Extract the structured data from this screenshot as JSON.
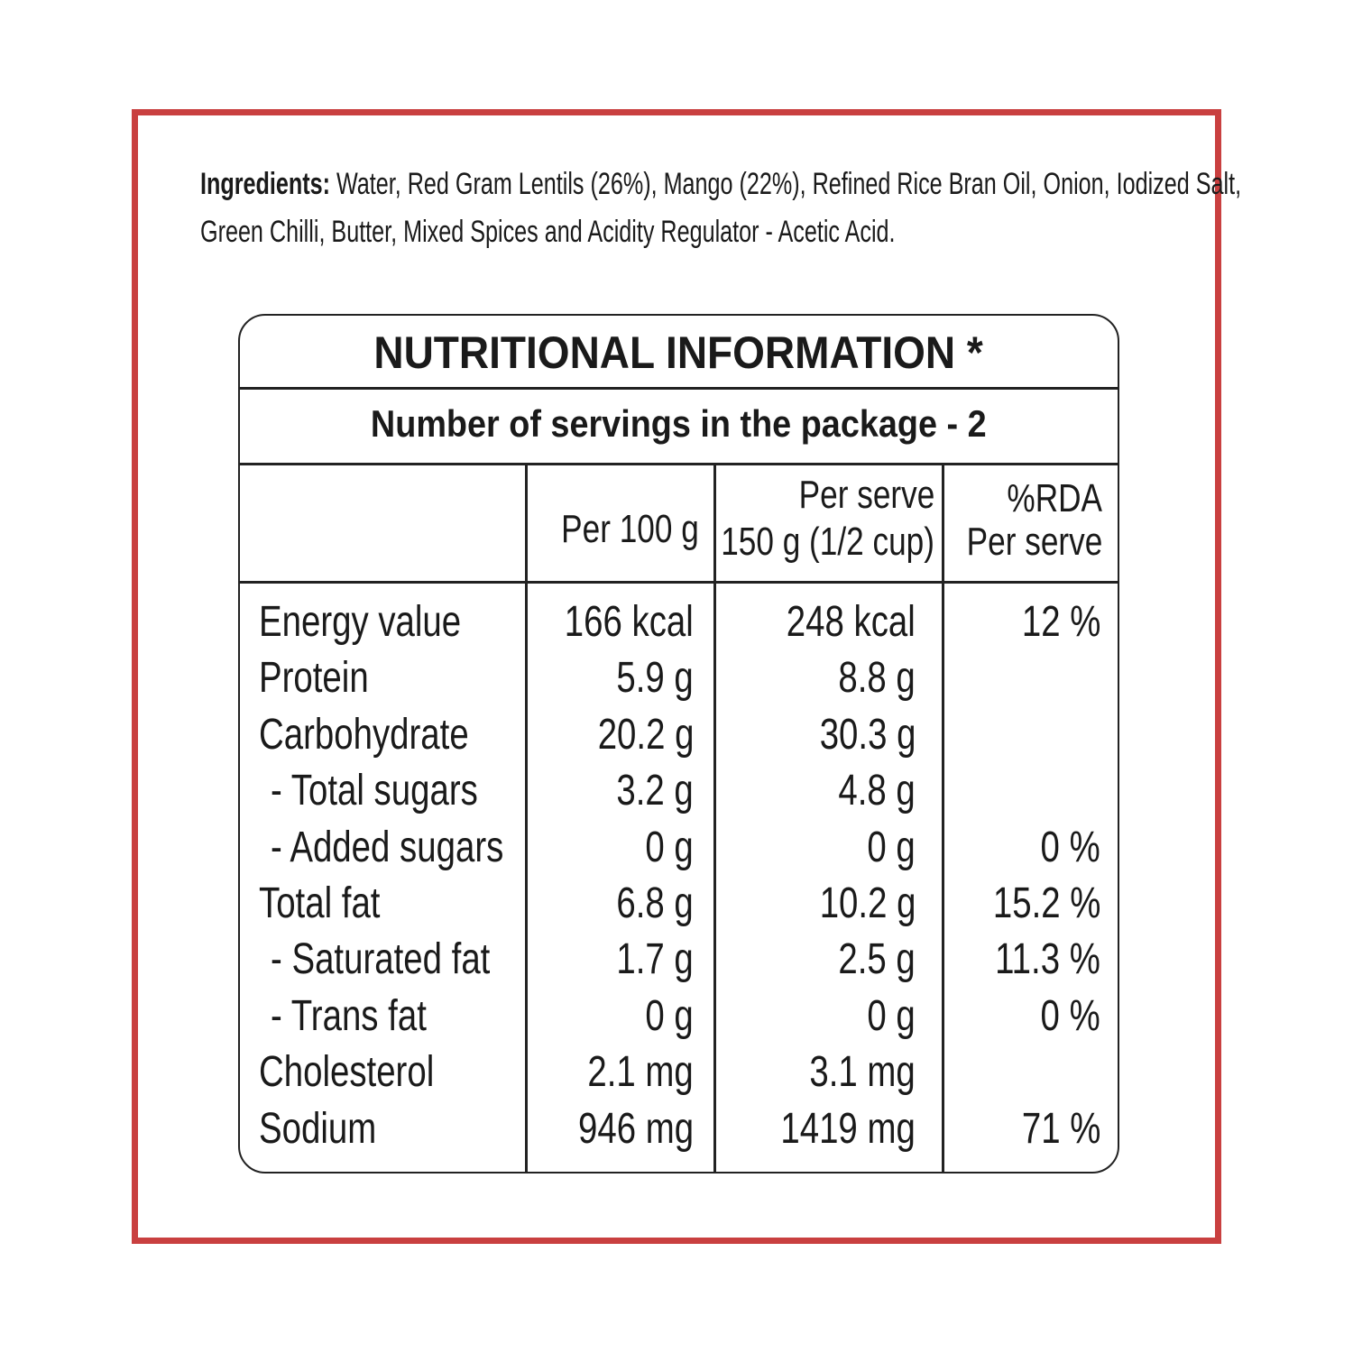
{
  "colors": {
    "border": "#c94040",
    "rule": "#222222"
  },
  "ingredients": {
    "label": "Ingredients:",
    "line1": " Water, Red Gram Lentils (26%), Mango (22%), Refined Rice Bran Oil, Onion, Iodized Salt,",
    "line2": "Green Chilli, Butter, Mixed Spices and Acidity Regulator - Acetic Acid."
  },
  "table": {
    "title": "NUTRITIONAL INFORMATION  *",
    "servings": "Number of servings in the package - 2",
    "headers": {
      "per100": "Per 100 g",
      "serve_l1": "Per serve",
      "serve_l2": "150 g (1/2 cup)",
      "rda_l1": "%RDA",
      "rda_l2": "Per serve"
    },
    "rows": [
      {
        "name": "Energy value",
        "per100": "166 kcal",
        "serve": "248 kcal",
        "rda": "12 %"
      },
      {
        "name": "Protein",
        "per100": "5.9 g",
        "serve": "8.8 g",
        "rda": ""
      },
      {
        "name": "Carbohydrate",
        "per100": "20.2 g",
        "serve": "30.3 g",
        "rda": ""
      },
      {
        "name": "- Total sugars",
        "per100": "3.2 g",
        "serve": "4.8 g",
        "rda": "",
        "sub": true
      },
      {
        "name": "- Added sugars",
        "per100": "0 g",
        "serve": "0 g",
        "rda": "0 %",
        "sub": true
      },
      {
        "name": "Total fat",
        "per100": "6.8 g",
        "serve": "10.2 g",
        "rda": "15.2 %"
      },
      {
        "name": "- Saturated fat",
        "per100": "1.7 g",
        "serve": "2.5 g",
        "rda": "11.3 %",
        "sub": true
      },
      {
        "name": "- Trans fat",
        "per100": "0 g",
        "serve": "0 g",
        "rda": "0 %",
        "sub": true
      },
      {
        "name": "Cholesterol",
        "per100": "2.1 mg",
        "serve": "3.1 mg",
        "rda": ""
      },
      {
        "name": "Sodium",
        "per100": "946 mg",
        "serve": "1419 mg",
        "rda": "71 %"
      }
    ]
  }
}
